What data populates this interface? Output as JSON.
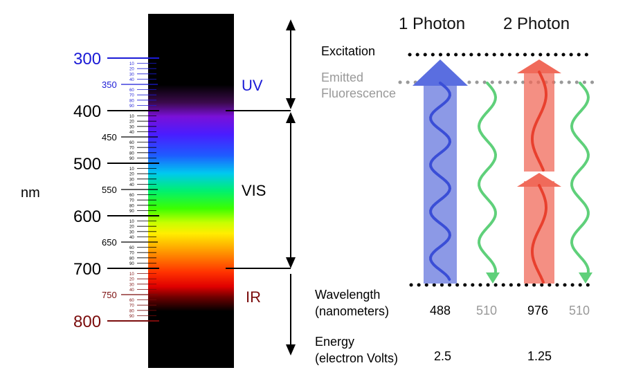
{
  "scale": {
    "unit_label": "nm",
    "major_ticks": [
      {
        "value": "300",
        "color": "#1a1ad6"
      },
      {
        "value": "400",
        "color": "#000000"
      },
      {
        "value": "500",
        "color": "#000000"
      },
      {
        "value": "600",
        "color": "#000000"
      },
      {
        "value": "700",
        "color": "#000000"
      },
      {
        "value": "800",
        "color": "#7a0b0b"
      }
    ],
    "half_ticks": [
      {
        "value": "350",
        "color": "#1a1ad6"
      },
      {
        "value": "450",
        "color": "#000000"
      },
      {
        "value": "550",
        "color": "#000000"
      },
      {
        "value": "650",
        "color": "#000000"
      },
      {
        "value": "750",
        "color": "#7a0b0b"
      }
    ],
    "minor_labels": [
      "10",
      "20",
      "30",
      "40",
      "60",
      "70",
      "80",
      "90"
    ]
  },
  "regions": {
    "uv": {
      "label": "UV",
      "color": "#1a1ad6"
    },
    "vis": {
      "label": "VIS",
      "color": "#000000"
    },
    "ir": {
      "label": "IR",
      "color": "#7a0b0b"
    }
  },
  "excitation": {
    "header_one": "1 Photon",
    "header_two": "2 Photon",
    "excitation_label": "Excitation",
    "emitted_label_line1": "Emitted",
    "emitted_label_line2": "Fluorescence",
    "wavelength_label_line1": "Wavelength",
    "wavelength_label_line2": "(nanometers)",
    "energy_label_line1": "Energy",
    "energy_label_line2": "(electron Volts)",
    "one_photon_wavelength": "488",
    "one_photon_emission": "510",
    "two_photon_wavelength": "976",
    "two_photon_emission": "510",
    "one_photon_energy": "2.5",
    "two_photon_energy": "1.25",
    "colors": {
      "blue_arrow": "#6f7fe0",
      "blue_wave": "#3a4ed6",
      "red_arrow": "#f06a5a",
      "red_wave": "#e8402e",
      "green_wave": "#5fd07a",
      "gray_text": "#999999"
    }
  }
}
